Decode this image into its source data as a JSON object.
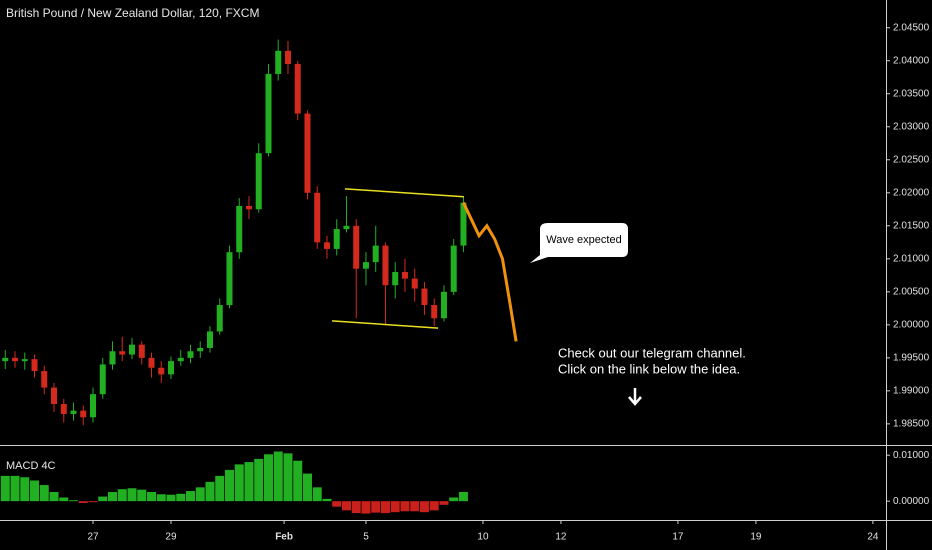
{
  "chart_data": [
    {
      "type": "candlestick",
      "title": "British Pound / New Zealand Dollar, 120, FXCM",
      "up_color": "#22b022",
      "down_color": "#d42a1e",
      "x": [
        -2.25,
        -2,
        -1.75,
        -1.5,
        -1.25,
        -1,
        -0.75,
        -0.5,
        -0.25,
        0,
        0.25,
        0.5,
        0.75,
        1,
        1.25,
        1.5,
        1.75,
        2,
        2.25,
        2.5,
        2.75,
        3,
        3.25,
        3.5,
        3.75,
        4,
        4.25,
        4.5,
        4.75,
        5,
        5.25,
        5.5,
        5.75,
        6,
        6.25,
        6.5,
        6.75,
        7,
        7.25,
        7.5,
        7.75,
        8,
        8.25,
        8.5,
        8.75,
        9,
        9.25,
        9.5
      ],
      "open": [
        1.9945,
        1.995,
        1.9945,
        1.9948,
        1.993,
        1.9905,
        1.988,
        1.9865,
        1.987,
        1.986,
        1.9895,
        1.994,
        1.996,
        1.9955,
        1.997,
        1.995,
        1.9935,
        1.9925,
        1.9945,
        1.995,
        1.996,
        1.9965,
        1.999,
        2.003,
        2.011,
        2.018,
        2.0175,
        2.026,
        2.038,
        2.0415,
        2.0395,
        2.032,
        2.02,
        2.0125,
        2.0115,
        2.0145,
        2.015,
        2.0085,
        2.0095,
        2.012,
        2.006,
        2.008,
        2.007,
        2.0055,
        2.003,
        2.001,
        2.005,
        2.012
      ],
      "high": [
        1.9962,
        1.996,
        1.9958,
        1.9955,
        1.9938,
        1.9912,
        1.9888,
        1.9882,
        1.9878,
        1.9905,
        1.995,
        1.9975,
        1.9982,
        1.998,
        1.9975,
        1.9958,
        1.9945,
        1.9952,
        1.9962,
        1.997,
        1.9975,
        1.9998,
        2.004,
        2.012,
        2.0192,
        2.0195,
        2.0275,
        2.0395,
        2.0432,
        2.043,
        2.04,
        2.0325,
        2.021,
        2.0135,
        2.016,
        2.0195,
        2.016,
        2.011,
        2.015,
        2.0125,
        2.0095,
        2.01,
        2.0085,
        2.0065,
        2.004,
        2.006,
        2.013,
        2.0195
      ],
      "low": [
        1.9933,
        1.9935,
        1.9932,
        1.992,
        1.9895,
        1.9868,
        1.9852,
        1.9855,
        1.9848,
        1.9852,
        1.9888,
        1.9932,
        1.9945,
        1.9948,
        1.994,
        1.992,
        1.9912,
        1.9918,
        1.9938,
        1.9942,
        1.995,
        1.9958,
        1.9985,
        2.0025,
        2.01,
        2.016,
        2.017,
        2.0255,
        2.037,
        2.038,
        2.031,
        2.019,
        2.0115,
        2.01,
        2.0105,
        2.014,
        2.001,
        2.006,
        2.008,
        2,
        2.004,
        2.005,
        2.0035,
        2.0015,
        1.9998,
        2.0005,
        2.0045,
        2.011
      ],
      "close": [
        1.995,
        1.9945,
        1.9948,
        1.993,
        1.9905,
        1.988,
        1.9865,
        1.987,
        1.986,
        1.9895,
        1.994,
        1.996,
        1.9955,
        1.997,
        1.995,
        1.9935,
        1.9925,
        1.9945,
        1.995,
        1.996,
        1.9965,
        1.999,
        2.003,
        2.011,
        2.018,
        2.0175,
        2.026,
        2.038,
        2.0415,
        2.0395,
        2.032,
        2.02,
        2.0125,
        2.0115,
        2.0145,
        2.015,
        2.0085,
        2.0095,
        2.012,
        2.006,
        2.008,
        2.007,
        2.0055,
        2.003,
        2.001,
        2.005,
        2.012,
        2.0185
      ],
      "projection": {
        "color": "#f0920f",
        "x": [
          9.5,
          9.7,
          9.9,
          10.1,
          10.3,
          10.5,
          10.7,
          10.85
        ],
        "values": [
          2.0185,
          2.016,
          2.0135,
          2.015,
          2.013,
          2.01,
          2.003,
          1.9975
        ]
      },
      "channel": {
        "color": "#e8e020",
        "lines": [
          {
            "x": [
              6.46,
              9.51
            ],
            "values": [
              2.0206,
              2.0194
            ]
          },
          {
            "x": [
              6.13,
              8.85
            ],
            "values": [
              2.0006,
              1.9995
            ]
          }
        ]
      },
      "callout": "Wave expected",
      "note": [
        "Check out our telegram channel.",
        "Click on the link below the idea."
      ],
      "xlim": [
        -2.385,
        20.31
      ],
      "ylim": [
        1.9818,
        2.0492
      ],
      "yticks": [
        {
          "value": 1.985,
          "label": "1.98500"
        },
        {
          "value": 1.99,
          "label": "1.99000"
        },
        {
          "value": 1.995,
          "label": "1.99500"
        },
        {
          "value": 2,
          "label": "2.00000"
        },
        {
          "value": 2.005,
          "label": "2.00500"
        },
        {
          "value": 2.01,
          "label": "2.01000"
        },
        {
          "value": 2.015,
          "label": "2.01500"
        },
        {
          "value": 2.02,
          "label": "2.02000"
        },
        {
          "value": 2.025,
          "label": "2.02500"
        },
        {
          "value": 2.03,
          "label": "2.03000"
        },
        {
          "value": 2.035,
          "label": "2.03500"
        },
        {
          "value": 2.04,
          "label": "2.04000"
        },
        {
          "value": 2.045,
          "label": "2.04500"
        }
      ]
    },
    {
      "type": "bar",
      "title": "MACD 4C",
      "up_color": "#22b022",
      "down_color": "#c8201a",
      "values": [
        0.0055,
        0.0055,
        0.0052,
        0.0045,
        0.0035,
        0.002,
        0.0008,
        0.0002,
        -0.0004,
        -0.0002,
        0.001,
        0.002,
        0.0026,
        0.0028,
        0.0025,
        0.002,
        0.0015,
        0.0014,
        0.0016,
        0.0022,
        0.003,
        0.0042,
        0.0055,
        0.0068,
        0.008,
        0.0085,
        0.0092,
        0.0102,
        0.0108,
        0.0104,
        0.0088,
        0.006,
        0.003,
        0.0005,
        -0.0012,
        -0.002,
        -0.0026,
        -0.0027,
        -0.0025,
        -0.0026,
        -0.0024,
        -0.0022,
        -0.0022,
        -0.0024,
        -0.002,
        -0.0008,
        0.0008,
        0.002
      ],
      "ylim": [
        -0.0041,
        0.012
      ],
      "yticks": [
        {
          "value": 0,
          "label": "0.00000"
        },
        {
          "value": 0.01,
          "label": "0.01000"
        }
      ],
      "xticks": [
        {
          "value": 0,
          "label": "27"
        },
        {
          "value": 2,
          "label": "29"
        },
        {
          "value": 4.9,
          "label": "Feb"
        },
        {
          "value": 7,
          "label": "5"
        },
        {
          "value": 10,
          "label": "10"
        },
        {
          "value": 12,
          "label": "12"
        },
        {
          "value": 15,
          "label": "17"
        },
        {
          "value": 17,
          "label": "19"
        },
        {
          "value": 20,
          "label": "24"
        }
      ]
    }
  ]
}
